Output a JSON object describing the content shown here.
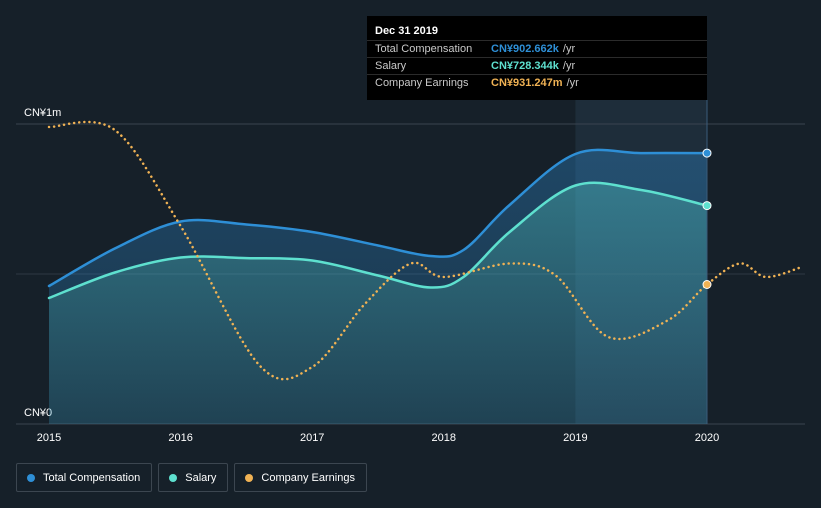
{
  "chart_data": {
    "type": "line",
    "x_ticks": [
      "2015",
      "2016",
      "2017",
      "2018",
      "2019",
      "2020"
    ],
    "y_tick_labels": [
      "CN¥1m",
      "CN¥0"
    ],
    "ylim": [
      0,
      1000000
    ],
    "xlim": [
      2015,
      2020.73
    ],
    "series": [
      {
        "name": "Total Compensation",
        "color": "#2e8fd6",
        "style": "solid-area",
        "points": [
          [
            2015,
            460000
          ],
          [
            2015.5,
            585000
          ],
          [
            2016,
            675000
          ],
          [
            2016.5,
            665000
          ],
          [
            2017,
            640000
          ],
          [
            2017.5,
            595000
          ],
          [
            2017.9,
            560000
          ],
          [
            2018.15,
            580000
          ],
          [
            2018.5,
            730000
          ],
          [
            2019,
            900000
          ],
          [
            2019.5,
            903000
          ],
          [
            2020,
            903000
          ]
        ]
      },
      {
        "name": "Salary",
        "color": "#5ee0cf",
        "style": "solid-area",
        "points": [
          [
            2015,
            420000
          ],
          [
            2015.5,
            505000
          ],
          [
            2016,
            555000
          ],
          [
            2016.5,
            553000
          ],
          [
            2017,
            545000
          ],
          [
            2017.5,
            495000
          ],
          [
            2017.9,
            455000
          ],
          [
            2018.15,
            490000
          ],
          [
            2018.5,
            640000
          ],
          [
            2019,
            795000
          ],
          [
            2019.5,
            780000
          ],
          [
            2020,
            728000
          ]
        ]
      },
      {
        "name": "Company Earnings",
        "color": "#f0b254",
        "style": "dotted",
        "points": [
          [
            2015,
            990000
          ],
          [
            2015.5,
            980000
          ],
          [
            2016,
            660000
          ],
          [
            2016.6,
            195000
          ],
          [
            2017,
            190000
          ],
          [
            2017.4,
            400000
          ],
          [
            2017.75,
            535000
          ],
          [
            2018,
            490000
          ],
          [
            2018.5,
            535000
          ],
          [
            2018.85,
            495000
          ],
          [
            2019.25,
            290000
          ],
          [
            2019.7,
            345000
          ],
          [
            2020,
            465000
          ],
          [
            2020.25,
            535000
          ],
          [
            2020.45,
            490000
          ],
          [
            2020.73,
            525000
          ]
        ]
      }
    ],
    "tooltip": {
      "title": "Dec 31 2019",
      "rows": [
        {
          "label": "Total Compensation",
          "value": "CN¥902.662k",
          "unit": "/yr",
          "color": "#2e8fd6"
        },
        {
          "label": "Salary",
          "value": "CN¥728.344k",
          "unit": "/yr",
          "color": "#5ee0cf"
        },
        {
          "label": "Company Earnings",
          "value": "CN¥931.247m",
          "unit": "/yr",
          "color": "#f0b254"
        }
      ]
    },
    "legend": [
      {
        "label": "Total Compensation",
        "color": "#2e8fd6"
      },
      {
        "label": "Salary",
        "color": "#5ee0cf"
      },
      {
        "label": "Company Earnings",
        "color": "#f0b254"
      }
    ],
    "highlight_range": [
      2019,
      2020
    ]
  }
}
